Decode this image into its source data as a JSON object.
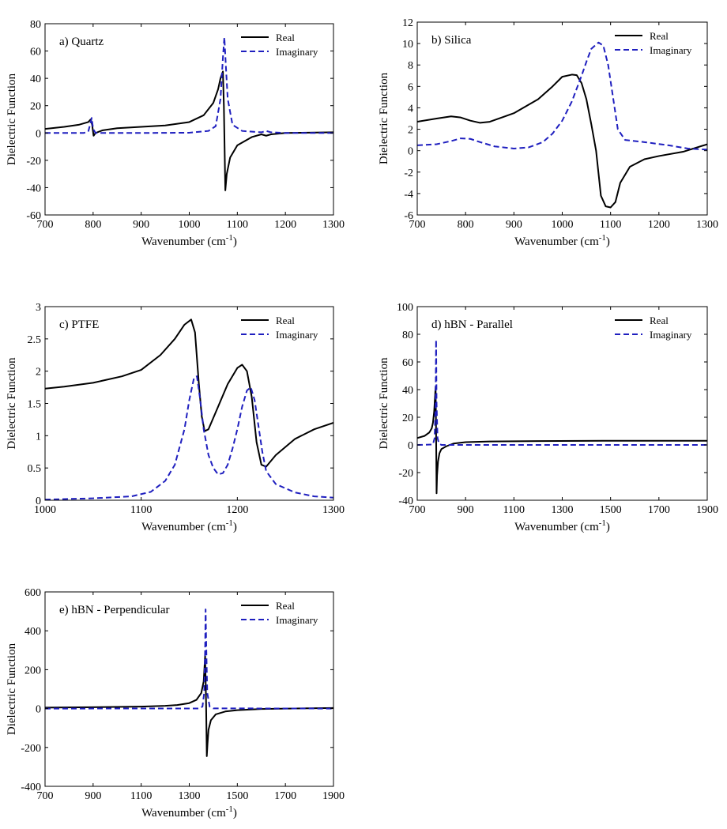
{
  "figure": {
    "xlabel": "Wavenumber (cm",
    "xlabel_sup": "-1",
    "xlabel_end": ")",
    "ylabel": "Dielectric Function"
  },
  "legend": {
    "real": "Real",
    "imaginary": "Imaginary"
  },
  "colors": {
    "real": "#000000",
    "imaginary": "#1f1fbf"
  },
  "chart_data": [
    {
      "type": "line",
      "title": "a) Quartz",
      "xlabel": "Wavenumber (cm-1)",
      "ylabel": "Dielectric Function",
      "xlim": [
        700,
        1300
      ],
      "ylim": [
        -60,
        80
      ],
      "xticks": [
        700,
        800,
        900,
        1000,
        1100,
        1200,
        1300
      ],
      "yticks": [
        -60,
        -40,
        -20,
        0,
        20,
        40,
        60,
        80
      ],
      "series": [
        {
          "name": "Real",
          "style": "solid",
          "x": [
            700,
            740,
            770,
            790,
            795,
            798,
            801,
            805,
            820,
            850,
            900,
            950,
            1000,
            1030,
            1050,
            1060,
            1065,
            1070,
            1072,
            1075,
            1078,
            1085,
            1100,
            1130,
            1150,
            1160,
            1170,
            1200,
            1300
          ],
          "y": [
            3,
            4.5,
            6,
            8,
            10,
            6,
            -2,
            0,
            2,
            3.5,
            4.5,
            5.5,
            8,
            13,
            22,
            32,
            40,
            45,
            20,
            -42,
            -30,
            -18,
            -9,
            -3,
            -1,
            -2,
            -1,
            0,
            0.5
          ]
        },
        {
          "name": "Imaginary",
          "style": "dashed",
          "x": [
            700,
            780,
            790,
            795,
            797,
            800,
            805,
            830,
            900,
            1000,
            1040,
            1055,
            1065,
            1070,
            1073,
            1076,
            1080,
            1090,
            1110,
            1150,
            1160,
            1170,
            1200,
            1300
          ],
          "y": [
            0,
            0,
            1,
            8,
            11,
            3,
            0,
            0,
            0,
            0.2,
            1.5,
            5,
            25,
            55,
            70,
            50,
            25,
            6,
            1.5,
            0.5,
            1.5,
            0.5,
            0,
            0
          ]
        }
      ]
    },
    {
      "type": "line",
      "title": "b) Silica",
      "xlabel": "Wavenumber (cm-1)",
      "ylabel": "Dielectric Function",
      "xlim": [
        700,
        1300
      ],
      "ylim": [
        -6,
        12
      ],
      "xticks": [
        700,
        800,
        900,
        1000,
        1100,
        1200,
        1300
      ],
      "yticks": [
        -6,
        -4,
        -2,
        0,
        2,
        4,
        6,
        8,
        10,
        12
      ],
      "series": [
        {
          "name": "Real",
          "style": "solid",
          "x": [
            700,
            740,
            770,
            790,
            810,
            830,
            850,
            900,
            950,
            980,
            1000,
            1020,
            1030,
            1040,
            1050,
            1060,
            1070,
            1080,
            1090,
            1100,
            1110,
            1120,
            1140,
            1170,
            1200,
            1250,
            1300
          ],
          "y": [
            2.7,
            3.0,
            3.2,
            3.1,
            2.8,
            2.6,
            2.7,
            3.5,
            4.8,
            6.0,
            6.9,
            7.1,
            7.05,
            6.3,
            4.8,
            2.5,
            0.0,
            -4.2,
            -5.2,
            -5.3,
            -4.8,
            -3.0,
            -1.5,
            -0.8,
            -0.5,
            -0.1,
            0.6
          ]
        },
        {
          "name": "Imaginary",
          "style": "dashed",
          "x": [
            700,
            740,
            770,
            790,
            810,
            830,
            860,
            900,
            930,
            960,
            980,
            1000,
            1020,
            1040,
            1050,
            1060,
            1075,
            1085,
            1095,
            1105,
            1115,
            1130,
            1170,
            1220,
            1260,
            1300
          ],
          "y": [
            0.5,
            0.6,
            0.9,
            1.15,
            1.1,
            0.8,
            0.4,
            0.2,
            0.3,
            0.8,
            1.6,
            2.8,
            4.6,
            7.0,
            8.3,
            9.5,
            10.1,
            9.8,
            8.0,
            5.0,
            2.0,
            1.0,
            0.8,
            0.5,
            0.2,
            0.1
          ]
        }
      ]
    },
    {
      "type": "line",
      "title": "c) PTFE",
      "xlabel": "Wavenumber (cm-1)",
      "ylabel": "Dielectric Function",
      "xlim": [
        1000,
        1300
      ],
      "ylim": [
        0,
        3
      ],
      "xticks": [
        1000,
        1100,
        1200,
        1300
      ],
      "yticks": [
        0,
        0.5,
        1,
        1.5,
        2,
        2.5,
        3
      ],
      "series": [
        {
          "name": "Real",
          "style": "solid",
          "x": [
            1000,
            1020,
            1050,
            1080,
            1100,
            1120,
            1135,
            1145,
            1152,
            1156,
            1160,
            1163,
            1166,
            1170,
            1180,
            1190,
            1200,
            1205,
            1210,
            1215,
            1220,
            1225,
            1230,
            1240,
            1260,
            1280,
            1300
          ],
          "y": [
            1.73,
            1.76,
            1.82,
            1.92,
            2.02,
            2.25,
            2.5,
            2.72,
            2.8,
            2.6,
            1.8,
            1.3,
            1.07,
            1.1,
            1.45,
            1.8,
            2.05,
            2.1,
            2.0,
            1.6,
            0.9,
            0.55,
            0.52,
            0.7,
            0.95,
            1.1,
            1.2
          ]
        },
        {
          "name": "Imaginary",
          "style": "dashed",
          "x": [
            1000,
            1050,
            1090,
            1110,
            1125,
            1135,
            1145,
            1150,
            1155,
            1158,
            1161,
            1165,
            1170,
            1175,
            1180,
            1185,
            1190,
            1195,
            1200,
            1205,
            1210,
            1214,
            1218,
            1222,
            1226,
            1230,
            1240,
            1260,
            1280,
            1300
          ],
          "y": [
            0.01,
            0.03,
            0.06,
            0.13,
            0.3,
            0.55,
            1.1,
            1.55,
            1.9,
            1.92,
            1.6,
            1.1,
            0.7,
            0.5,
            0.4,
            0.42,
            0.55,
            0.8,
            1.1,
            1.45,
            1.7,
            1.75,
            1.55,
            1.15,
            0.75,
            0.45,
            0.25,
            0.12,
            0.06,
            0.04
          ]
        }
      ]
    },
    {
      "type": "line",
      "title": "d) hBN - Parallel",
      "xlabel": "Wavenumber (cm-1)",
      "ylabel": "Dielectric Function",
      "xlim": [
        700,
        1900
      ],
      "ylim": [
        -40,
        100
      ],
      "xticks": [
        700,
        900,
        1100,
        1300,
        1500,
        1700,
        1900
      ],
      "yticks": [
        -40,
        -20,
        0,
        20,
        40,
        60,
        80,
        100
      ],
      "series": [
        {
          "name": "Real",
          "style": "solid",
          "x": [
            700,
            730,
            750,
            760,
            765,
            770,
            773,
            776,
            778,
            780,
            782,
            786,
            792,
            800,
            820,
            850,
            900,
            1000,
            1200,
            1500,
            1900
          ],
          "y": [
            5,
            6.5,
            9,
            12,
            16,
            24,
            33,
            42,
            10,
            -35,
            -22,
            -12,
            -6,
            -3,
            -1,
            1,
            2,
            2.5,
            2.8,
            3,
            3
          ]
        },
        {
          "name": "Imaginary",
          "style": "dashed",
          "x": [
            700,
            765,
            772,
            776,
            778,
            780,
            784,
            790,
            800,
            1900
          ],
          "y": [
            0,
            0.3,
            5,
            30,
            76,
            30,
            5,
            1,
            0,
            0
          ]
        }
      ]
    },
    {
      "type": "line",
      "title": "e) hBN - Perpendicular",
      "xlabel": "Wavenumber (cm-1)",
      "ylabel": "Dielectric Function",
      "xlim": [
        700,
        1900
      ],
      "ylim": [
        -400,
        600
      ],
      "xticks": [
        700,
        900,
        1100,
        1300,
        1500,
        1700,
        1900
      ],
      "yticks": [
        -400,
        -200,
        0,
        200,
        400,
        600
      ],
      "series": [
        {
          "name": "Real",
          "style": "solid",
          "x": [
            700,
            900,
            1100,
            1200,
            1250,
            1300,
            1330,
            1350,
            1360,
            1366,
            1370,
            1373,
            1376,
            1380,
            1390,
            1410,
            1450,
            1500,
            1600,
            1900
          ],
          "y": [
            5,
            7,
            10,
            14,
            18,
            28,
            45,
            80,
            140,
            270,
            30,
            -245,
            -180,
            -110,
            -60,
            -30,
            -15,
            -8,
            -2,
            3
          ]
        },
        {
          "name": "Imaginary",
          "style": "dashed",
          "x": [
            700,
            1340,
            1355,
            1362,
            1366,
            1368,
            1371,
            1375,
            1385,
            1400,
            1900
          ],
          "y": [
            0,
            0.5,
            10,
            80,
            300,
            510,
            300,
            80,
            10,
            1,
            0
          ]
        }
      ]
    }
  ]
}
